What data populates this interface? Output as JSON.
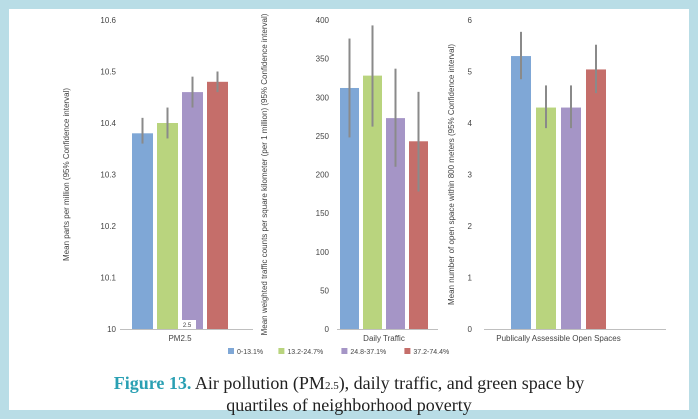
{
  "chart_data": [
    {
      "type": "bar",
      "categories": [
        "PM2.5"
      ],
      "xlabel": "PM2.5",
      "ylabel": "Mean parts per million (95% Confidence interval)",
      "ylim": [
        10,
        10.6
      ],
      "yticks": [
        "10",
        "10.1",
        "10.2",
        "10.3",
        "10.4",
        "10.5",
        "10.6"
      ],
      "inline_label": "2.5",
      "series": [
        {
          "name": "0-13.1%",
          "values": [
            10.38
          ],
          "ci": [
            10.36,
            10.41
          ]
        },
        {
          "name": "13.2-24.7%",
          "values": [
            10.4
          ],
          "ci": [
            10.37,
            10.43
          ]
        },
        {
          "name": "24.8-37.1%",
          "values": [
            10.46
          ],
          "ci": [
            10.43,
            10.49
          ]
        },
        {
          "name": "37.2-74.4%",
          "values": [
            10.48
          ],
          "ci": [
            10.46,
            10.5
          ]
        }
      ]
    },
    {
      "type": "bar",
      "categories": [
        "Daily Traffic"
      ],
      "xlabel": "Daily Traffic",
      "ylabel": "Mean weighted traffic counts per square kilometer (per 1 million) (95% Confidence interval)",
      "ylim": [
        0,
        400
      ],
      "yticks": [
        "0",
        "50",
        "100",
        "150",
        "200",
        "250",
        "300",
        "350",
        "400"
      ],
      "series": [
        {
          "name": "0-13.1%",
          "values": [
            312
          ],
          "ci": [
            248,
            376
          ]
        },
        {
          "name": "13.2-24.7%",
          "values": [
            328
          ],
          "ci": [
            262,
            393
          ]
        },
        {
          "name": "24.8-37.1%",
          "values": [
            273
          ],
          "ci": [
            210,
            337
          ]
        },
        {
          "name": "37.2-74.4%",
          "values": [
            243
          ],
          "ci": [
            178,
            307
          ]
        }
      ]
    },
    {
      "type": "bar",
      "categories": [
        "Publically Assessible Open Spaces"
      ],
      "xlabel": "Publically Assessible Open Spaces",
      "ylabel": "Mean number of open space within 800 meters (95% Confidence interval)",
      "ylim": [
        0,
        6
      ],
      "yticks": [
        "0",
        "1",
        "2",
        "3",
        "4",
        "5",
        "6"
      ],
      "series": [
        {
          "name": "0-13.1%",
          "values": [
            5.3
          ],
          "ci": [
            4.85,
            5.77
          ]
        },
        {
          "name": "13.2-24.7%",
          "values": [
            4.3
          ],
          "ci": [
            3.9,
            4.73
          ]
        },
        {
          "name": "24.8-37.1%",
          "values": [
            4.3
          ],
          "ci": [
            3.9,
            4.73
          ]
        },
        {
          "name": "37.2-74.4%",
          "values": [
            5.04
          ],
          "ci": [
            4.58,
            5.52
          ]
        }
      ]
    }
  ],
  "legend": {
    "items": [
      {
        "label": "0-13.1%",
        "color": "#7fa7d6"
      },
      {
        "label": "13.2-24.7%",
        "color": "#b9d47e"
      },
      {
        "label": "24.8-37.1%",
        "color": "#a595c6"
      },
      {
        "label": "37.2-74.4%",
        "color": "#c56e6a"
      }
    ]
  },
  "colors": {
    "series": [
      "#7fa7d6",
      "#b9d47e",
      "#a595c6",
      "#c56e6a"
    ],
    "error_bar": "#8a8a8a",
    "axis": "#bfbfbf",
    "frame": "#b9dde6",
    "figure_label": "#2aa0b3"
  },
  "caption": {
    "label": "Figure 13.",
    "text_part1": " Air pollution (PM",
    "subscript": "2.5",
    "text_part2": "), daily traffic, and green space by",
    "line2": "quartiles of neighborhood poverty"
  }
}
